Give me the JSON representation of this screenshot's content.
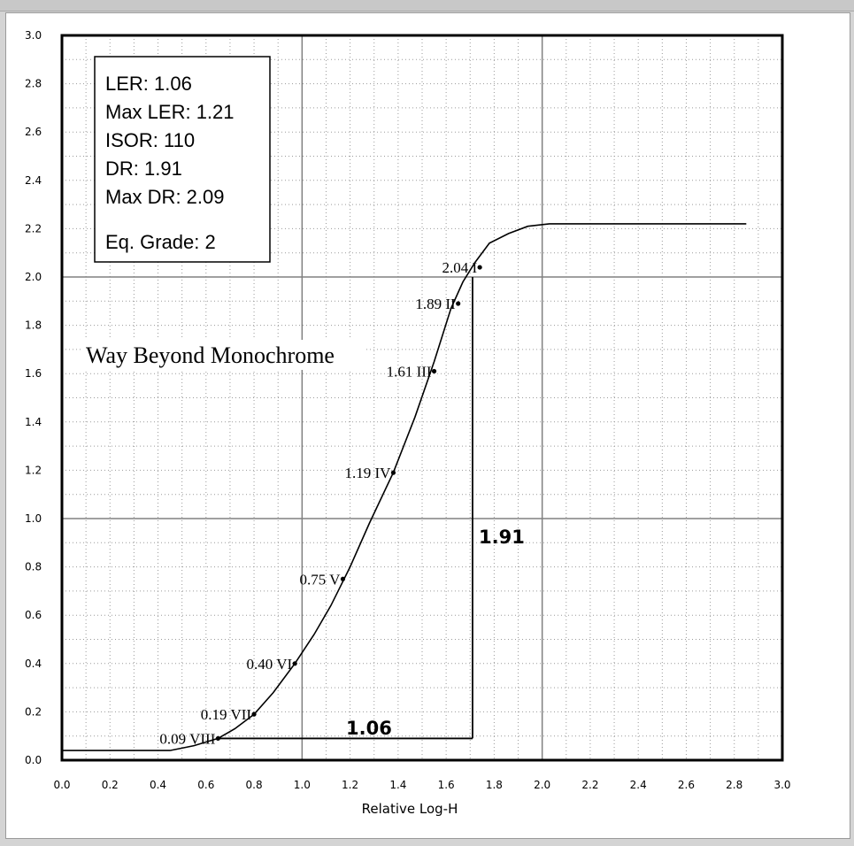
{
  "stats": {
    "ler": "LER:  1.06",
    "max_ler": "Max LER:  1.21",
    "isor": "ISOR:   110",
    "dr": "DR:  1.91",
    "max_dr": "Max DR:  2.09",
    "eq_grade": "Eq. Grade:   2"
  },
  "watermark": "Way Beyond Monochrome",
  "annotations": {
    "dr_value": "1.91",
    "ler_value": "1.06"
  },
  "chart_data": {
    "type": "line",
    "xlabel": "Relative Log-H",
    "ylabel": "",
    "xlim": [
      0,
      3.0
    ],
    "ylim": [
      0,
      3.0
    ],
    "x_ticks": [
      "0.0",
      "0.2",
      "0.4",
      "0.6",
      "0.8",
      "1.0",
      "1.2",
      "1.4",
      "1.6",
      "1.8",
      "2.0",
      "2.2",
      "2.4",
      "2.6",
      "2.8",
      "3.0"
    ],
    "y_ticks": [
      "0.0",
      "0.2",
      "0.4",
      "0.6",
      "0.8",
      "1.0",
      "1.2",
      "1.4",
      "1.6",
      "1.8",
      "2.0",
      "2.2",
      "2.4",
      "2.6",
      "2.8",
      "3.0"
    ],
    "grid": "dotted minor grid every 0.1, solid major lines at 1.0 and 2.0",
    "curve": {
      "x": [
        0.0,
        0.3,
        0.45,
        0.55,
        0.65,
        0.72,
        0.8,
        0.88,
        0.97,
        1.05,
        1.12,
        1.2,
        1.28,
        1.38,
        1.47,
        1.55,
        1.62,
        1.67,
        1.72,
        1.78,
        1.86,
        1.94,
        2.03,
        2.3,
        2.6,
        2.85
      ],
      "y": [
        0.04,
        0.04,
        0.04,
        0.06,
        0.09,
        0.13,
        0.19,
        0.28,
        0.4,
        0.52,
        0.64,
        0.8,
        0.98,
        1.19,
        1.42,
        1.65,
        1.87,
        1.98,
        2.06,
        2.14,
        2.18,
        2.21,
        2.22,
        2.22,
        2.22,
        2.22
      ]
    },
    "points": [
      {
        "label": "2.04 I",
        "x": 1.74,
        "y": 2.04
      },
      {
        "label": "1.89 II",
        "x": 1.65,
        "y": 1.89
      },
      {
        "label": "1.61 III",
        "x": 1.55,
        "y": 1.61
      },
      {
        "label": "1.19 IV",
        "x": 1.38,
        "y": 1.19
      },
      {
        "label": "0.75 V",
        "x": 1.17,
        "y": 0.75
      },
      {
        "label": "0.40 VI",
        "x": 0.97,
        "y": 0.4
      },
      {
        "label": "0.19 VII",
        "x": 0.8,
        "y": 0.19
      },
      {
        "label": "0.09 VIII",
        "x": 0.65,
        "y": 0.09
      }
    ],
    "range_box": {
      "x_min": 0.65,
      "x_max": 1.71,
      "y_min": 0.09,
      "y_max": 2.0
    }
  }
}
